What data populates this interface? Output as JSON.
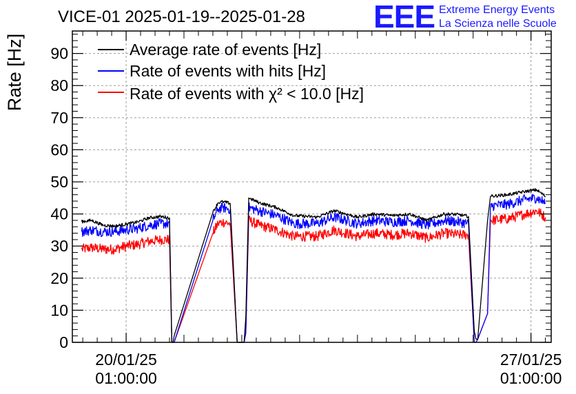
{
  "chart_data": {
    "type": "line",
    "title": "VICE-01 2025-01-19--2025-01-28",
    "ylabel": "Rate [Hz]",
    "xlabel": "",
    "ylim": [
      0,
      97
    ],
    "xlim_days": [
      -0.93,
      7.35
    ],
    "y_ticks": [
      0,
      10,
      20,
      30,
      40,
      50,
      60,
      70,
      80,
      90
    ],
    "x_ticks": [
      {
        "day": 0,
        "date": "20/01/25",
        "time": "01:00:00"
      },
      {
        "day": 7,
        "date": "27/01/25",
        "time": "01:00:00"
      }
    ],
    "grid": true,
    "legend_position": "top-left",
    "logo": {
      "mark": "EEE",
      "line1": "Extreme Energy Events",
      "line2": "La Scienza nelle Scuole"
    },
    "series": [
      {
        "name": "Average rate of events [Hz]",
        "legend_text": "Average rate of events [Hz]",
        "color": "#000000",
        "noise": 0.5,
        "x": [
          -0.77,
          -0.6,
          -0.4,
          -0.2,
          0.0,
          0.2,
          0.4,
          0.6,
          0.75,
          0.79,
          0.81,
          0.83,
          1.5,
          1.59,
          1.67,
          1.8,
          1.92,
          2.03,
          2.04,
          2.07,
          2.12,
          2.3,
          2.6,
          2.9,
          3.3,
          3.6,
          4.0,
          4.3,
          4.6,
          4.9,
          5.2,
          5.5,
          5.75,
          5.92,
          6.02,
          6.05,
          6.08,
          6.25,
          6.3,
          6.6,
          6.9,
          7.1,
          7.25
        ],
        "y": [
          37.6,
          38.0,
          36.5,
          36.2,
          36.8,
          37.5,
          38.8,
          39.2,
          38.8,
          0.0,
          0.0,
          2.0,
          40.5,
          43.5,
          43.8,
          43.3,
          0.0,
          0.0,
          0.0,
          8.0,
          45.0,
          43.5,
          42.0,
          39.5,
          39.0,
          41.0,
          39.0,
          40.0,
          39.5,
          40.0,
          38.0,
          40.0,
          39.8,
          39.2,
          3.5,
          1.0,
          1.0,
          38.0,
          45.5,
          46.0,
          47.0,
          47.5,
          45.5
        ]
      },
      {
        "name": "Rate of events with hits [Hz]",
        "legend_text": "Rate of events with hits [Hz]",
        "color": "#0000ff",
        "noise": 1.6,
        "x": [
          -0.77,
          -0.6,
          -0.4,
          -0.2,
          0.0,
          0.2,
          0.4,
          0.6,
          0.75,
          0.79,
          0.81,
          0.83,
          1.5,
          1.59,
          1.67,
          1.8,
          1.92,
          2.03,
          2.04,
          2.07,
          2.12,
          2.3,
          2.6,
          2.9,
          3.3,
          3.6,
          4.0,
          4.3,
          4.6,
          4.9,
          5.2,
          5.5,
          5.75,
          5.92,
          6.02,
          6.05,
          6.08,
          6.25,
          6.3,
          6.6,
          6.9,
          7.1,
          7.25
        ],
        "y": [
          34.5,
          35.0,
          34.5,
          34.5,
          35.0,
          35.5,
          36.5,
          37.0,
          37.0,
          0.0,
          0.0,
          0.0,
          38.0,
          41.5,
          42.0,
          41.5,
          0.0,
          0.0,
          0.0,
          3.0,
          42.0,
          41.0,
          39.5,
          37.0,
          37.0,
          39.0,
          37.0,
          38.0,
          37.5,
          38.0,
          36.5,
          38.0,
          37.5,
          37.0,
          0.0,
          0.0,
          1.0,
          9.0,
          42.5,
          43.0,
          44.5,
          45.0,
          43.5
        ]
      },
      {
        "name": "Rate of events with chi2 < 10.0 [Hz]",
        "legend_text": "Rate of events with χ² < 10.0 [Hz]",
        "color": "#ff0000",
        "noise": 1.6,
        "x": [
          -0.77,
          -0.6,
          -0.4,
          -0.2,
          0.0,
          0.2,
          0.4,
          0.6,
          0.75,
          0.79,
          0.81,
          0.83,
          1.5,
          1.59,
          1.67,
          1.8,
          1.92,
          2.03,
          2.04,
          2.07,
          2.12,
          2.3,
          2.6,
          2.9,
          3.3,
          3.6,
          4.0,
          4.3,
          4.6,
          4.9,
          5.2,
          5.5,
          5.75,
          5.92,
          6.02,
          6.05,
          6.08,
          6.25,
          6.3,
          6.6,
          6.9,
          7.1,
          7.25
        ],
        "y": [
          29.0,
          29.5,
          29.0,
          29.0,
          30.0,
          30.5,
          31.5,
          32.0,
          32.0,
          0.0,
          0.0,
          0.0,
          34.0,
          37.0,
          37.5,
          37.0,
          0.0,
          0.0,
          0.0,
          3.0,
          38.0,
          36.5,
          35.0,
          33.0,
          33.0,
          35.0,
          33.0,
          34.0,
          33.5,
          34.0,
          32.5,
          34.0,
          33.5,
          33.5,
          0.0,
          0.0,
          1.0,
          9.0,
          38.0,
          38.5,
          40.0,
          41.0,
          39.0
        ]
      }
    ]
  }
}
